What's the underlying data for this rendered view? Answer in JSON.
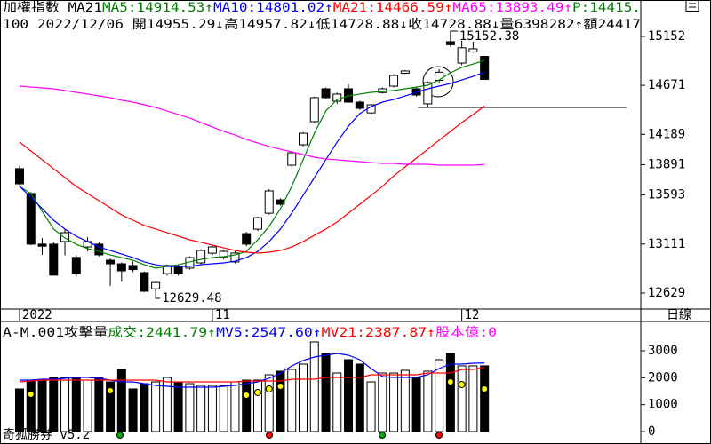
{
  "chart_data": [
    {
      "type": "candlestick",
      "title": "加權指數 MA21",
      "info_line": "100 2022/12/06 開14955.29↓高14957.82↓低14728.88↓收14728.88↓量6398282↑額24417",
      "categories": [
        "2022",
        null,
        null,
        null,
        null,
        null,
        null,
        null,
        null,
        null,
        null,
        null,
        null,
        null,
        null,
        null,
        null,
        "11",
        null,
        null,
        null,
        null,
        null,
        null,
        null,
        null,
        null,
        null,
        null,
        null,
        null,
        null,
        null,
        null,
        null,
        null,
        null,
        null,
        null,
        "12",
        null,
        null
      ],
      "open": [
        13852,
        13607,
        13110,
        13110,
        13136,
        12980,
        13083,
        13110,
        12952,
        12917,
        12900,
        12830,
        12671,
        12820,
        12890,
        12874,
        12926,
        13021,
        12978,
        12935,
        13214,
        13257,
        13414,
        13545,
        13886,
        14087,
        14314,
        14637,
        14515,
        14637,
        14506,
        14400,
        14600,
        14663,
        14790,
        14637,
        14489,
        14720,
        15100,
        14890,
        15000,
        14955.29
      ],
      "high": [
        13880,
        13620,
        13170,
        13130,
        13260,
        13000,
        13180,
        13130,
        12970,
        12930,
        12940,
        12840,
        12740,
        12910,
        12910,
        12990,
        13060,
        13100,
        13050,
        13040,
        13230,
        13380,
        13650,
        13560,
        14020,
        14210,
        14560,
        14650,
        14600,
        14680,
        14520,
        14490,
        14650,
        14780,
        14820,
        14650,
        14710,
        14830,
        15152.38,
        15110,
        15100,
        14957.82
      ],
      "low": [
        13690,
        13100,
        13005,
        12800,
        13000,
        12790,
        13040,
        12990,
        12700,
        12740,
        12835,
        12640,
        12629.48,
        12800,
        12800,
        12860,
        12910,
        13000,
        12960,
        12920,
        13090,
        13240,
        13400,
        13490,
        13870,
        14070,
        14300,
        14540,
        14490,
        14500,
        14430,
        14380,
        14590,
        14650,
        14780,
        14560,
        14454,
        14700,
        15050,
        14870,
        14990,
        14728.88
      ],
      "close": [
        13703,
        13110,
        13090,
        12805,
        13223,
        12820,
        13136,
        13005,
        12917,
        12847,
        12860,
        12647,
        12733,
        12900,
        12820,
        12978,
        13048,
        13083,
        13039,
        13022,
        13110,
        13370,
        13633,
        13502,
        14008,
        14200,
        14550,
        14550,
        14585,
        14506,
        14445,
        14480,
        14637,
        14768,
        14812,
        14576,
        14698,
        14800,
        15070,
        15040,
        15030,
        14728.88
      ],
      "up_color": "#ffffff",
      "down_color": "#000000",
      "series": [
        {
          "label": "MA5:14914.53↑",
          "color": "#008000",
          "values": [
            13677,
            13607,
            13432,
            13258,
            13170,
            13109,
            13066,
            13039,
            13004,
            12978,
            12952,
            12908,
            12874,
            12891,
            12908,
            12935,
            12961,
            12978,
            12987,
            13004,
            13039,
            13153,
            13284,
            13458,
            13677,
            13939,
            14201,
            14419,
            14532,
            14567,
            14585,
            14602,
            14611,
            14620,
            14637,
            14654,
            14672,
            14724,
            14794,
            14847,
            14881,
            14914.53
          ]
        },
        {
          "label": "MA10:14801.02↑",
          "color": "#0000ff",
          "values": [
            13677,
            13572,
            13459,
            13345,
            13258,
            13188,
            13135,
            13083,
            13048,
            13013,
            12978,
            12935,
            12908,
            12891,
            12891,
            12891,
            12908,
            12917,
            12926,
            12943,
            12978,
            13039,
            13135,
            13258,
            13415,
            13589,
            13764,
            13939,
            14113,
            14270,
            14393,
            14462,
            14506,
            14532,
            14567,
            14602,
            14637,
            14663,
            14689,
            14724,
            14759,
            14801.02
          ]
        },
        {
          "label": "MA21:14466.59↑",
          "color": "#ff0000",
          "values": [
            14113,
            14026,
            13939,
            13851,
            13764,
            13677,
            13607,
            13537,
            13467,
            13397,
            13345,
            13293,
            13258,
            13223,
            13188,
            13153,
            13127,
            13101,
            13074,
            13048,
            13031,
            13022,
            13031,
            13048,
            13083,
            13135,
            13197,
            13258,
            13328,
            13415,
            13502,
            13589,
            13677,
            13781,
            13869,
            13956,
            14043,
            14131,
            14218,
            14305,
            14384,
            14466.59
          ]
        },
        {
          "label": "MA65:13893.49↑",
          "color": "#ff00ff",
          "values": [
            14663,
            14654,
            14646,
            14637,
            14620,
            14602,
            14585,
            14567,
            14550,
            14524,
            14506,
            14480,
            14454,
            14419,
            14384,
            14349,
            14305,
            14262,
            14218,
            14183,
            14139,
            14104,
            14070,
            14043,
            14017,
            13991,
            13965,
            13947,
            13939,
            13930,
            13921,
            13912,
            13904,
            13904,
            13895,
            13895,
            13895,
            13886,
            13886,
            13886,
            13886,
            13893.49
          ]
        }
      ],
      "p_label": {
        "text": "P:14415.",
        "color": "#008000"
      },
      "ylim": [
        12472,
        15510
      ],
      "yticks": [
        15152,
        14671,
        14189,
        13891,
        13593,
        13111,
        12629
      ],
      "period": "日線"
    },
    {
      "type": "bar",
      "title": "A-M.001攻擊量",
      "label": "成交:2441.79↑",
      "label_color": "#008000",
      "values": [
        1583,
        1912,
        1912,
        2011,
        2011,
        2011,
        1912,
        2011,
        1846,
        2308,
        1583,
        1780,
        1846,
        2011,
        1846,
        1780,
        1715,
        1715,
        1715,
        1846,
        1912,
        1912,
        2110,
        2242,
        2308,
        2506,
        3330,
        2901,
        2176,
        2671,
        2506,
        1846,
        2176,
        2176,
        2275,
        2011,
        2242,
        2671,
        2901,
        2440,
        2440,
        2441.79
      ],
      "series": [
        {
          "label": "MV5:2547.60↑",
          "color": "#0000ff",
          "values": [
            1912,
            1912,
            1945,
            1945,
            1978,
            2011,
            2011,
            1978,
            1912,
            1846,
            1846,
            1780,
            1715,
            1681,
            1648,
            1648,
            1648,
            1648,
            1681,
            1715,
            1780,
            1846,
            1978,
            2176,
            2440,
            2638,
            2769,
            2835,
            2901,
            2835,
            2671,
            2341,
            2044,
            2011,
            2011,
            2011,
            2110,
            2341,
            2506,
            2506,
            2539,
            2547.6
          ]
        },
        {
          "label": "MV21:2387.87↑",
          "color": "#ff0000",
          "values": [
            1846,
            1879,
            1912,
            1912,
            1912,
            1912,
            1912,
            1912,
            1912,
            1912,
            1912,
            1912,
            1912,
            1846,
            1846,
            1846,
            1846,
            1846,
            1846,
            1846,
            1879,
            1879,
            1879,
            1879,
            1945,
            1945,
            1945,
            2011,
            2011,
            2011,
            2011,
            2110,
            2110,
            2110,
            2110,
            2110,
            2176,
            2176,
            2176,
            2308,
            2308,
            2387.87
          ]
        },
        {
          "color": "#ffff00",
          "marker": "dot",
          "values": [
            null,
            1385,
            null,
            null,
            null,
            null,
            null,
            null,
            1517,
            null,
            null,
            null,
            null,
            null,
            null,
            null,
            null,
            null,
            null,
            null,
            1352,
            1451,
            1583,
            1682,
            null,
            null,
            null,
            null,
            null,
            null,
            null,
            null,
            null,
            null,
            null,
            null,
            null,
            null,
            1846,
            1748,
            null,
            1583
          ]
        }
      ],
      "extra_label": {
        "text": "股本億:0",
        "color": "#ff00ff"
      },
      "ylim": [
        -462,
        4088
      ],
      "yticks": [
        3000,
        2000,
        1000,
        0
      ]
    }
  ],
  "footer": "奇狐勝券 v5.2"
}
